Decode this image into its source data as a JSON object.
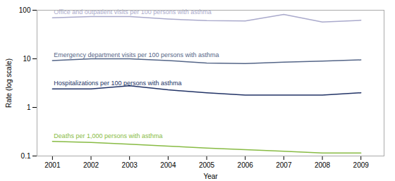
{
  "chart_data": {
    "type": "line",
    "x": [
      2001,
      2002,
      2003,
      2004,
      2005,
      2006,
      2007,
      2008,
      2009
    ],
    "series": [
      {
        "name": "Office and outpatient visits per 100 persons with asthma",
        "color": "#aaaacc",
        "values": [
          70,
          74,
          74,
          66,
          61,
          60,
          82,
          57,
          62
        ]
      },
      {
        "name": "Emergency department visits per 100 persons with asthma",
        "color": "#556688",
        "values": [
          9.2,
          10.0,
          10.0,
          9.2,
          8.2,
          8.0,
          8.5,
          9.0,
          9.5
        ]
      },
      {
        "name": "Hospitalizations per 100 persons with asthma",
        "color": "#223366",
        "values": [
          2.4,
          2.4,
          2.8,
          2.3,
          2.0,
          1.8,
          1.8,
          1.8,
          2.0
        ]
      },
      {
        "name": "Deaths per 1,000 persons with asthma",
        "color": "#88bb44",
        "values": [
          0.2,
          0.19,
          0.175,
          0.16,
          0.145,
          0.135,
          0.125,
          0.115,
          0.115
        ]
      }
    ],
    "xlabel": "Year",
    "ylabel": "Rate (log scale)",
    "log": "y",
    "xlim": [
      2000.6,
      2009.6
    ],
    "xticks": [
      2001,
      2002,
      2003,
      2004,
      2005,
      2006,
      2007,
      2008,
      2009
    ],
    "ylim": [
      0.1,
      100
    ],
    "yticks": [
      0.1,
      1,
      10,
      100
    ]
  }
}
